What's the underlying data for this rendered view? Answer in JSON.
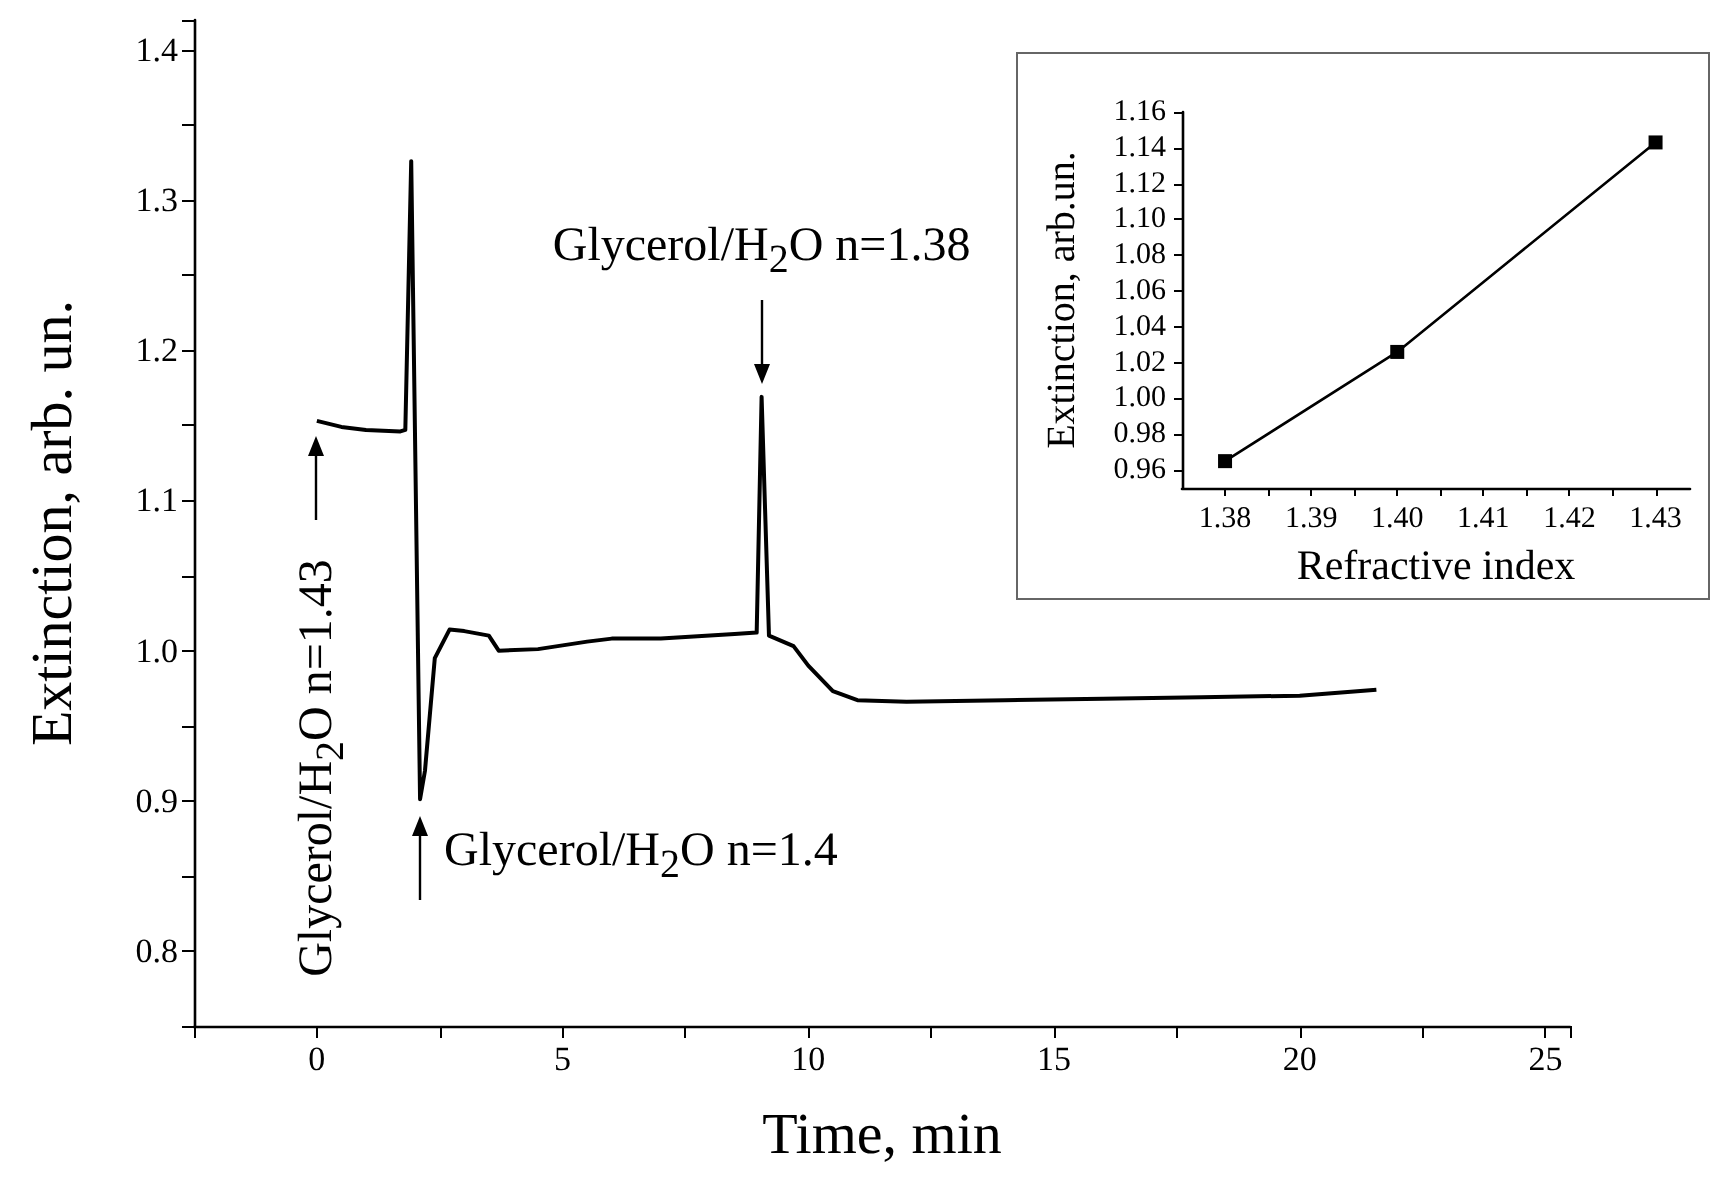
{
  "chart_data": [
    {
      "type": "line",
      "xlabel": "Time, min",
      "ylabel": "Extinction, arb. un.",
      "marker": "none",
      "color": "#000000",
      "x": [
        0,
        0.5,
        1.0,
        1.7,
        1.8,
        1.92,
        2.1,
        2.2,
        2.4,
        2.7,
        3.0,
        3.5,
        3.7,
        4.5,
        5.5,
        6.0,
        7.0,
        8.5,
        8.95,
        9.05,
        9.2,
        9.7,
        10.0,
        10.5,
        11.0,
        12,
        14,
        16,
        18,
        20,
        21.56
      ],
      "values": [
        1.153,
        1.149,
        1.147,
        1.146,
        1.147,
        1.326,
        0.901,
        0.92,
        0.995,
        1.014,
        1.013,
        1.01,
        1.0,
        1.001,
        1.006,
        1.008,
        1.008,
        1.011,
        1.012,
        1.169,
        1.01,
        1.003,
        0.99,
        0.973,
        0.967,
        0.966,
        0.967,
        0.968,
        0.969,
        0.97,
        0.974
      ],
      "xlim": [
        -2.5,
        25.5
      ],
      "xticks": [
        {
          "value": -2.5,
          "label": null
        },
        0,
        {
          "value": 2.5,
          "label": null
        },
        5,
        {
          "value": 7.5,
          "label": null
        },
        10,
        {
          "value": 12.5,
          "label": null
        },
        15,
        {
          "value": 17.5,
          "label": null
        },
        20,
        {
          "value": 22.5,
          "label": null
        },
        25
      ],
      "ylim": [
        0.75,
        1.42
      ],
      "yticks": [
        {
          "value": 0.75,
          "label": null
        },
        0.8,
        {
          "value": 0.85,
          "label": null
        },
        0.9,
        {
          "value": 0.95,
          "label": null
        },
        {
          "value": 1,
          "label": "1.0"
        },
        {
          "value": 1.05,
          "label": null
        },
        1.1,
        {
          "value": 1.15,
          "label": null
        },
        1.2,
        {
          "value": 1.25,
          "label": null
        },
        1.3,
        {
          "value": 1.35,
          "label": null
        },
        1.4
      ],
      "annotations": [
        "Glycerol/H$_{2}$O n=1.43",
        {
          "text": "Glycerol/H$_{2}$O n=1.38",
          "x": 9.05,
          "y": 1.169
        },
        {
          "text": "Glycerol/H$_{2}$O n=1.4",
          "x": 2.1,
          "y": 0.901
        }
      ]
    },
    {
      "type": "line",
      "xlabel": "Refractive index",
      "ylabel": "Extinction, arb.un.",
      "marker": "square",
      "color": "#000000",
      "x": [
        1.38,
        1.4,
        1.43
      ],
      "values": [
        0.965,
        1.026,
        1.143
      ],
      "xlim": [
        1.375,
        1.434
      ],
      "xticks": [
        1.38,
        {
          "value": 1.385,
          "label": null
        },
        1.39,
        {
          "value": 1.395,
          "label": null
        },
        {
          "value": 1.4,
          "label": "1.40"
        },
        {
          "value": 1.405,
          "label": null
        },
        1.41,
        {
          "value": 1.415,
          "label": null
        },
        1.42,
        {
          "value": 1.425,
          "label": null
        },
        1.43
      ],
      "ylim": [
        0.95,
        1.16
      ],
      "yticks": [
        0.96,
        0.98,
        {
          "value": 1,
          "label": "1.00"
        },
        1.02,
        1.04,
        1.06,
        1.08,
        {
          "value": 1.1,
          "label": "1.10"
        },
        1.12,
        1.14,
        1.16
      ]
    }
  ]
}
